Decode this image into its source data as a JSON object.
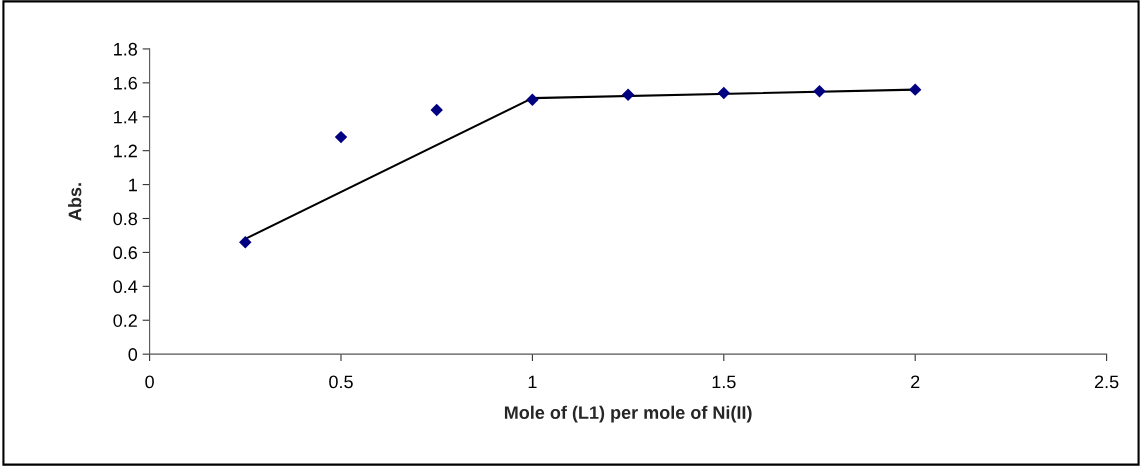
{
  "chart_data": {
    "type": "scatter",
    "xlabel": "Mole of (L1) per mole of Ni(II)",
    "ylabel": "Abs.",
    "xlim": [
      0,
      2.5
    ],
    "xticks": [
      0,
      0.5,
      1,
      1.5,
      2,
      2.5
    ],
    "ylim": [
      0,
      1.8
    ],
    "yticks": [
      0,
      0.2,
      0.4,
      0.6,
      0.8,
      1,
      1.2,
      1.4,
      1.6,
      1.8
    ],
    "grid": false,
    "legend": false,
    "series": [
      {
        "marker": "diamond",
        "color": "#000080",
        "x": [
          0.25,
          0.5,
          0.75,
          1,
          1.25,
          1.5,
          1.75,
          2
        ],
        "values": [
          0.66,
          1.28,
          1.44,
          1.5,
          1.53,
          1.54,
          1.55,
          1.56
        ]
      },
      {
        "type": "line",
        "marker": "none",
        "color": "#000000",
        "x": [
          0.25,
          1
        ],
        "values": [
          0.68,
          1.51
        ]
      },
      {
        "type": "line",
        "marker": "none",
        "color": "#000000",
        "x": [
          1,
          2
        ],
        "values": [
          1.51,
          1.56
        ]
      }
    ]
  }
}
